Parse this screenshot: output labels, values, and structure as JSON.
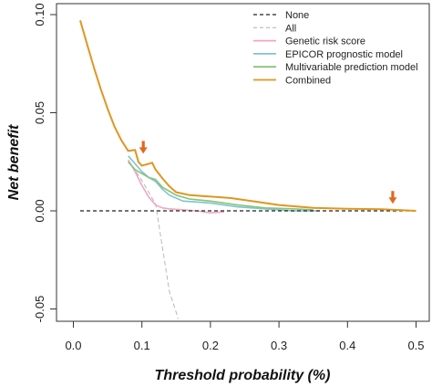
{
  "chart_data": {
    "type": "line",
    "xlabel": "Threshold probability (%)",
    "ylabel": "Net benefit",
    "xlim": [
      0,
      0.5
    ],
    "ylim": [
      -0.055,
      0.105
    ],
    "x_ticks": [
      {
        "value": 0,
        "label": "0.0"
      },
      {
        "value": 0.1,
        "label": "0.1"
      },
      {
        "value": 0.2,
        "label": "0.2"
      },
      {
        "value": 0.3,
        "label": "0.3"
      },
      {
        "value": 0.4,
        "label": "0.4"
      },
      {
        "value": 0.5,
        "label": "0.5"
      }
    ],
    "y_ticks": [
      {
        "value": -0.05,
        "label": "-0.05"
      },
      {
        "value": 0,
        "label": "0.00"
      },
      {
        "value": 0.05,
        "label": "0.05"
      },
      {
        "value": 0.1,
        "label": "0.10"
      }
    ],
    "grid": false,
    "legend": "top-right",
    "series": [
      {
        "name": "None",
        "color": "#222222",
        "dash": true,
        "points": [
          [
            0.01,
            0
          ],
          [
            0.5,
            0
          ]
        ]
      },
      {
        "name": "All",
        "color": "#b8b8b8",
        "dash": true,
        "points": [
          [
            0.08,
            0.026
          ],
          [
            0.1,
            0.0155
          ],
          [
            0.12,
            0.0035
          ],
          [
            0.14,
            -0.041
          ],
          [
            0.153,
            -0.055
          ]
        ]
      },
      {
        "name": "Genetic risk score",
        "color": "#f0a6c4",
        "dash": false,
        "points": [
          [
            0.08,
            0.026
          ],
          [
            0.09,
            0.02
          ],
          [
            0.1,
            0.013
          ],
          [
            0.11,
            0.007
          ],
          [
            0.12,
            0.003
          ],
          [
            0.13,
            0.0015
          ],
          [
            0.14,
            0.001
          ],
          [
            0.16,
            0.0005
          ],
          [
            0.18,
            0
          ],
          [
            0.2,
            -0.001
          ],
          [
            0.22,
            -0.0005
          ]
        ]
      },
      {
        "name": "EPICOR prognostic model",
        "color": "#7ec4cf",
        "dash": false,
        "points": [
          [
            0.08,
            0.028
          ],
          [
            0.09,
            0.024
          ],
          [
            0.1,
            0.02
          ],
          [
            0.11,
            0.017
          ],
          [
            0.12,
            0.015
          ],
          [
            0.13,
            0.011
          ],
          [
            0.14,
            0.008
          ],
          [
            0.16,
            0.005
          ],
          [
            0.18,
            0.0045
          ],
          [
            0.2,
            0.004
          ],
          [
            0.24,
            0.002
          ],
          [
            0.28,
            0.001
          ],
          [
            0.32,
            0
          ],
          [
            0.36,
            0
          ]
        ]
      },
      {
        "name": "Multivariable prediction model",
        "color": "#8ac27a",
        "dash": false,
        "points": [
          [
            0.08,
            0.025
          ],
          [
            0.09,
            0.021
          ],
          [
            0.1,
            0.019
          ],
          [
            0.11,
            0.017
          ],
          [
            0.12,
            0.016
          ],
          [
            0.13,
            0.012
          ],
          [
            0.14,
            0.01
          ],
          [
            0.15,
            0.008
          ],
          [
            0.17,
            0.006
          ],
          [
            0.2,
            0.005
          ],
          [
            0.24,
            0.003
          ],
          [
            0.28,
            0.0015
          ],
          [
            0.32,
            0.001
          ],
          [
            0.35,
            0.0005
          ]
        ]
      },
      {
        "name": "Combined",
        "color": "#e0961f",
        "dash": false,
        "points": [
          [
            0.01,
            0.097
          ],
          [
            0.02,
            0.085
          ],
          [
            0.03,
            0.073
          ],
          [
            0.04,
            0.062
          ],
          [
            0.05,
            0.052
          ],
          [
            0.06,
            0.043
          ],
          [
            0.07,
            0.036
          ],
          [
            0.08,
            0.0305
          ],
          [
            0.09,
            0.031
          ],
          [
            0.095,
            0.025
          ],
          [
            0.1,
            0.023
          ],
          [
            0.11,
            0.024
          ],
          [
            0.115,
            0.0245
          ],
          [
            0.12,
            0.021
          ],
          [
            0.13,
            0.0165
          ],
          [
            0.14,
            0.0125
          ],
          [
            0.15,
            0.0095
          ],
          [
            0.17,
            0.008
          ],
          [
            0.19,
            0.0075
          ],
          [
            0.21,
            0.007
          ],
          [
            0.23,
            0.0065
          ],
          [
            0.26,
            0.005
          ],
          [
            0.3,
            0.003
          ],
          [
            0.35,
            0.0015
          ],
          [
            0.4,
            0.001
          ],
          [
            0.45,
            0.0008
          ],
          [
            0.5,
            0
          ]
        ]
      }
    ],
    "annotations": [
      {
        "type": "arrow",
        "x": 0.102,
        "y": 0.0305,
        "color": "#e06a1e"
      },
      {
        "type": "arrow",
        "x": 0.466,
        "y": 0.005,
        "color": "#e06a1e"
      }
    ]
  }
}
